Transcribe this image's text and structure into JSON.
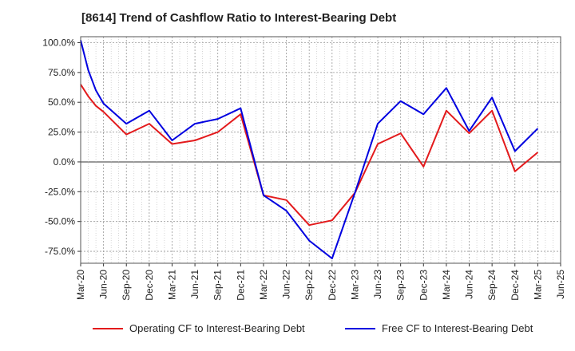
{
  "chart_data": {
    "type": "line",
    "title": "[8614]  Trend of Cashflow Ratio to Interest-Bearing Debt",
    "x_tick_labels": [
      "Mar-20",
      "Jun-20",
      "Sep-20",
      "Dec-20",
      "Mar-21",
      "Jun-21",
      "Sep-21",
      "Dec-21",
      "Mar-22",
      "Jun-22",
      "Sep-22",
      "Dec-22",
      "Mar-23",
      "Jun-23",
      "Sep-23",
      "Dec-23",
      "Mar-24",
      "Jun-24",
      "Sep-24",
      "Dec-24",
      "Mar-25",
      "Jun-25"
    ],
    "y_tick_labels": [
      "100.0%",
      "75.0%",
      "50.0%",
      "25.0%",
      "0.0%",
      "-25.0%",
      "-50.0%",
      "-75.0%"
    ],
    "y_ticks": [
      100,
      75,
      50,
      25,
      0,
      -25,
      -50,
      -75
    ],
    "ylim": [
      -85,
      105
    ],
    "xlim": [
      0,
      63
    ],
    "grid": true,
    "legend_position": "bottom",
    "series": [
      {
        "name": "Operating CF to Interest-Bearing Debt",
        "color": "#e31a1c",
        "x": [
          0,
          1,
          2,
          3,
          6,
          9,
          12,
          15,
          18,
          21,
          24,
          27,
          30,
          33,
          36,
          39,
          42,
          45,
          48,
          51,
          54,
          57,
          60
        ],
        "values": [
          65,
          55,
          47,
          42,
          23,
          32,
          15,
          18,
          25,
          40,
          -28,
          -32,
          -53,
          -49,
          -26,
          15,
          24,
          -4,
          43,
          24,
          43,
          -8,
          8
        ]
      },
      {
        "name": "Free CF to Interest-Bearing Debt",
        "color": "#0000e0",
        "x": [
          0,
          1,
          2,
          3,
          6,
          9,
          12,
          15,
          18,
          21,
          24,
          27,
          30,
          33,
          36,
          39,
          42,
          45,
          48,
          51,
          54,
          57,
          60
        ],
        "values": [
          102,
          77,
          60,
          49,
          32,
          43,
          18,
          32,
          36,
          45,
          -28,
          -41,
          -66,
          -81,
          -26,
          32,
          51,
          40,
          62,
          26,
          54,
          9,
          28
        ]
      }
    ]
  }
}
